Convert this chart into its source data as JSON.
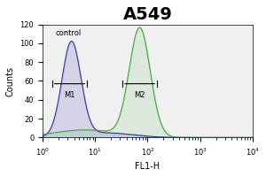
{
  "title": "A549",
  "xlabel": "FL1-H",
  "ylabel": "Counts",
  "xlim": [
    1.0,
    10000.0
  ],
  "ylim": [
    0,
    120
  ],
  "yticks": [
    0,
    20,
    40,
    60,
    80,
    100,
    120
  ],
  "control_label": "control",
  "blue_color": "#3333aa",
  "green_color": "#33aa33",
  "blue_peak_log": 0.55,
  "blue_peak_height": 100,
  "blue_sigma": 0.18,
  "green_peak_log": 1.85,
  "green_peak_height": 115,
  "green_sigma": 0.2,
  "m1_x1_log": 0.18,
  "m1_x2_log": 0.85,
  "m1_y": 57,
  "m2_x1_log": 1.52,
  "m2_x2_log": 2.18,
  "m2_y": 57,
  "background_color": "#f0f0f0",
  "title_fontsize": 14,
  "label_fontsize": 7,
  "tick_fontsize": 6
}
